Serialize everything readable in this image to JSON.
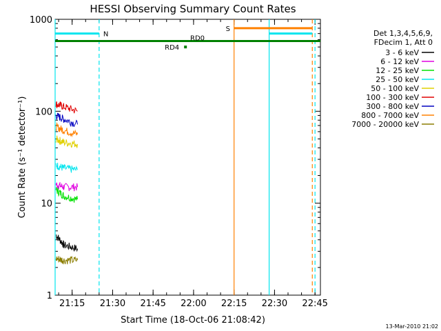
{
  "chart_data": {
    "type": "line",
    "title": "HESSI Observing Summary Count Rates",
    "xlabel": "Start Time (18-Oct-06 21:08:42)",
    "ylabel": "Count Rate (s⁻¹ detector⁻¹)",
    "yscale": "log",
    "xlim": [
      "21:08:42",
      "22:47:00"
    ],
    "ylim": [
      1,
      1000
    ],
    "x_ticks": [
      "21:15",
      "21:30",
      "21:45",
      "22:00",
      "22:15",
      "22:30",
      "22:45"
    ],
    "y_ticks": [
      "1",
      "10",
      "100",
      "1000"
    ],
    "legend_header": [
      "Det 1,3,4,5,6,9,",
      "FDecim 1, Att 0"
    ],
    "legend_position": "right",
    "series": [
      {
        "name": "3 - 6 keV",
        "color": "#000000",
        "x": [
          "21:09",
          "21:12",
          "21:17"
        ],
        "y": [
          4.5,
          3.5,
          3.2
        ]
      },
      {
        "name": "6 - 12 keV",
        "color": "#e000e0",
        "x": [
          "21:09",
          "21:12",
          "21:17"
        ],
        "y": [
          16,
          15,
          15
        ]
      },
      {
        "name": "12 - 25 keV",
        "color": "#00e000",
        "x": [
          "21:09",
          "21:12",
          "21:17"
        ],
        "y": [
          14,
          12,
          11
        ]
      },
      {
        "name": "25 - 50 keV",
        "color": "#00e5ee",
        "x": [
          "21:09",
          "21:12",
          "21:17"
        ],
        "y": [
          26,
          24,
          23
        ]
      },
      {
        "name": "50 - 100 keV",
        "color": "#e0d000",
        "x": [
          "21:09",
          "21:12",
          "21:17"
        ],
        "y": [
          50,
          46,
          44
        ]
      },
      {
        "name": "100 - 300 keV",
        "color": "#e00000",
        "x": [
          "21:09",
          "21:12",
          "21:17"
        ],
        "y": [
          120,
          112,
          100
        ]
      },
      {
        "name": "300 - 800 keV",
        "color": "#0000c0",
        "x": [
          "21:09",
          "21:12",
          "21:17"
        ],
        "y": [
          90,
          82,
          72
        ]
      },
      {
        "name": "800 - 7000 keV",
        "color": "#ff8000",
        "x": [
          "21:09",
          "21:12",
          "21:17"
        ],
        "y": [
          68,
          62,
          56
        ]
      },
      {
        "name": "7000 - 20000 keV",
        "color": "#8b7d00",
        "x": [
          "21:09",
          "21:12",
          "21:17"
        ],
        "y": [
          2.5,
          2.4,
          2.4
        ]
      }
    ],
    "flags": [
      {
        "label": "N",
        "color": "#00e5ee",
        "x": [
          "21:08:42",
          "21:25"
        ],
        "y": 700
      },
      {
        "label": "S",
        "color": "#ff8000",
        "x": [
          "22:15",
          "22:44"
        ],
        "y": 800
      },
      {
        "label": "",
        "color": "#00e5ee",
        "x": [
          "22:28",
          "22:44"
        ],
        "y": 700
      },
      {
        "label": "RD0",
        "color": "#008000",
        "x": [
          "21:08:42",
          "22:47"
        ],
        "y": 580
      },
      {
        "label": "RD4",
        "color": "#008000",
        "x": [
          "21:57"
        ],
        "y": 500
      }
    ],
    "vlines": [
      {
        "x": "21:08:42",
        "color": "#00e5ee",
        "style": "solid"
      },
      {
        "x": "21:25",
        "color": "#00e5ee",
        "style": "dashed"
      },
      {
        "x": "22:15",
        "color": "#ff8000",
        "style": "solid"
      },
      {
        "x": "22:28",
        "color": "#00e5ee",
        "style": "solid"
      },
      {
        "x": "22:44",
        "color": "#ff8000",
        "style": "dashed"
      },
      {
        "x": "22:45",
        "color": "#00e5ee",
        "style": "dashed"
      }
    ],
    "footer": "13-Mar-2010 21:02"
  }
}
